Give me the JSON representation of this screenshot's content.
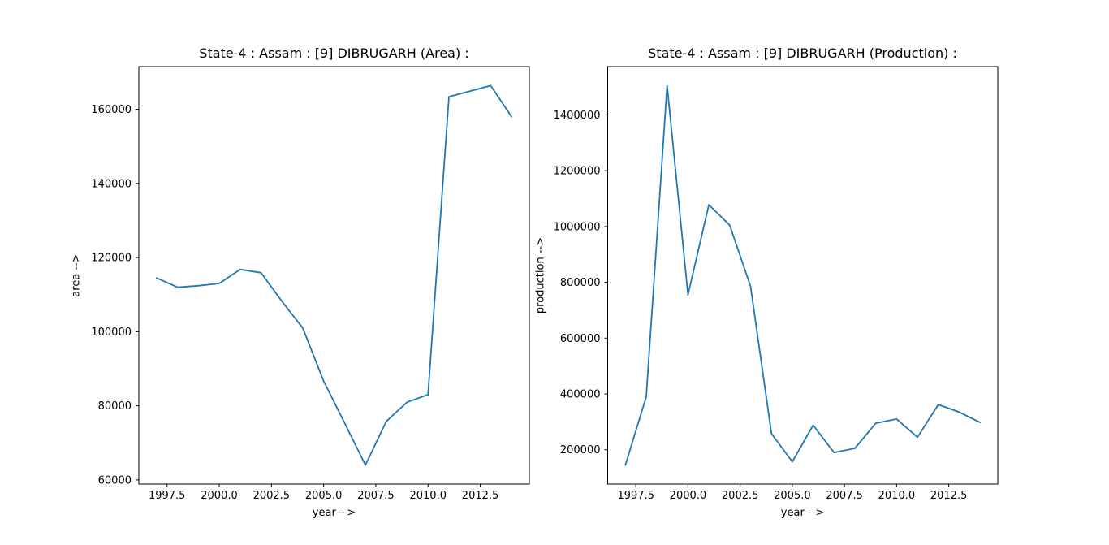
{
  "figure": {
    "background": "#ffffff",
    "axis_color": "#000000",
    "line_color": "#1f77b4"
  },
  "chart_data": [
    {
      "type": "line",
      "title": "State-4 : Assam : [9] DIBRUGARH (Area) :",
      "xlabel": "year -->",
      "ylabel": "area -->",
      "grid": false,
      "legend": null,
      "line_color": "#1f77b4",
      "x": [
        1997,
        1998,
        1999,
        2000,
        2001,
        2002,
        2003,
        2004,
        2005,
        2006,
        2007,
        2008,
        2009,
        2010,
        2011,
        2012,
        2013,
        2014
      ],
      "series": [
        {
          "name": "area",
          "values": [
            114500,
            112000,
            112400,
            113000,
            116800,
            115900,
            108200,
            101000,
            86700,
            75400,
            64000,
            75800,
            81000,
            83000,
            163400,
            164900,
            166400,
            158000
          ]
        }
      ],
      "xlim": [
        1996.15,
        2014.85
      ],
      "ylim": [
        58880,
        171520
      ],
      "xticks": [
        1997.5,
        2000.0,
        2002.5,
        2005.0,
        2007.5,
        2010.0,
        2012.5
      ],
      "xtick_labels": [
        "1997.5",
        "2000.0",
        "2002.5",
        "2005.0",
        "2007.5",
        "2010.0",
        "2012.5"
      ],
      "yticks": [
        60000,
        80000,
        100000,
        120000,
        140000,
        160000
      ],
      "ytick_labels": [
        "60000",
        "80000",
        "100000",
        "120000",
        "140000",
        "160000"
      ]
    },
    {
      "type": "line",
      "title": "State-4 : Assam : [9] DIBRUGARH (Production) :",
      "xlabel": "year -->",
      "ylabel": "production -->",
      "grid": false,
      "legend": null,
      "line_color": "#1f77b4",
      "x": [
        1997,
        1998,
        1999,
        2000,
        2001,
        2002,
        2003,
        2004,
        2005,
        2006,
        2007,
        2008,
        2009,
        2010,
        2011,
        2012,
        2013,
        2014
      ],
      "series": [
        {
          "name": "production",
          "values": [
            145000,
            390000,
            1505000,
            755000,
            1078000,
            1005000,
            785000,
            258000,
            157000,
            288000,
            190000,
            205000,
            295000,
            310000,
            245000,
            362000,
            335000,
            298000
          ]
        }
      ],
      "xlim": [
        1996.15,
        2014.85
      ],
      "ylim": [
        77000,
        1573000
      ],
      "xticks": [
        1997.5,
        2000.0,
        2002.5,
        2005.0,
        2007.5,
        2010.0,
        2012.5
      ],
      "xtick_labels": [
        "1997.5",
        "2000.0",
        "2002.5",
        "2005.0",
        "2007.5",
        "2010.0",
        "2012.5"
      ],
      "yticks": [
        200000,
        400000,
        600000,
        800000,
        1000000,
        1200000,
        1400000
      ],
      "ytick_labels": [
        "200000",
        "400000",
        "600000",
        "800000",
        "1000000",
        "1200000",
        "1400000"
      ]
    }
  ]
}
